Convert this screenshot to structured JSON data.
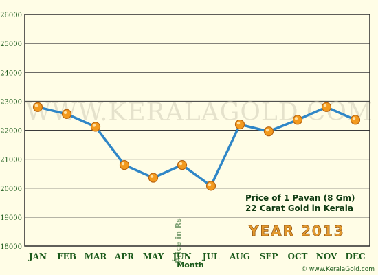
{
  "chart_data": {
    "type": "line",
    "watermark": "WWW.KERALAGOLD.COM",
    "xlabel": "Month",
    "ylabel": "Price in Rs",
    "ylim": [
      18000,
      26000
    ],
    "yticks": [
      18000,
      19000,
      20000,
      21000,
      22000,
      23000,
      24000,
      25000,
      26000
    ],
    "categories": [
      "JAN",
      "FEB",
      "MAR",
      "APR",
      "MAY",
      "JUN",
      "JUL",
      "AUG",
      "SEP",
      "OCT",
      "NOV",
      "DEC"
    ],
    "series": [
      {
        "values": [
          22800,
          22560,
          22120,
          20800,
          20360,
          20800,
          20080,
          22200,
          21960,
          22360,
          22800,
          22360
        ]
      }
    ],
    "legend_lines": [
      "Price of 1 Pavan (8 Gm)",
      "22 Carat Gold in Kerala"
    ],
    "year_label": "YEAR 2013",
    "credit": "© www.KeralaGold.com",
    "grid": true,
    "colors": {
      "line": "#2f86c7",
      "marker": "#f39a1e",
      "marker_edge": "#b86410",
      "text": "#1b5a1b",
      "frame": "#2a2a2a",
      "year": "#e39a2f"
    }
  }
}
